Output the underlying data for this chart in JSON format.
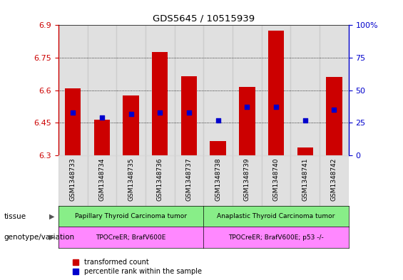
{
  "title": "GDS5645 / 10515939",
  "samples": [
    "GSM1348733",
    "GSM1348734",
    "GSM1348735",
    "GSM1348736",
    "GSM1348737",
    "GSM1348738",
    "GSM1348739",
    "GSM1348740",
    "GSM1348741",
    "GSM1348742"
  ],
  "transformed_count": [
    6.61,
    6.465,
    6.575,
    6.775,
    6.665,
    6.365,
    6.615,
    6.875,
    6.335,
    6.66
  ],
  "percentile_rank": [
    33,
    29,
    32,
    33,
    33,
    27,
    37,
    37,
    27,
    35
  ],
  "ylim_left": [
    6.3,
    6.9
  ],
  "ylim_right": [
    0,
    100
  ],
  "yticks_left": [
    6.3,
    6.45,
    6.6,
    6.75,
    6.9
  ],
  "ytick_labels_left": [
    "6.3",
    "6.45",
    "6.6",
    "6.75",
    "6.9"
  ],
  "yticks_right": [
    0,
    25,
    50,
    75,
    100
  ],
  "ytick_labels_right": [
    "0",
    "25",
    "50",
    "75",
    "100%"
  ],
  "gridlines": [
    6.45,
    6.6,
    6.75
  ],
  "tissue_labels": [
    "Papillary Thyroid Carcinoma tumor",
    "Anaplastic Thyroid Carcinoma tumor"
  ],
  "tissue_color": "#88EE88",
  "genotype_labels": [
    "TPOCreER; BrafV600E",
    "TPOCreER; BrafV600E; p53 -/-"
  ],
  "genotype_color": "#FF88FF",
  "bar_color": "#CC0000",
  "dot_color": "#0000CC",
  "bar_width": 0.55,
  "bar_bottom": 6.3,
  "col_bg_color": "#C8C8C8",
  "tick_color_left": "#CC0000",
  "tick_color_right": "#0000CC",
  "legend_label_red": "transformed count",
  "legend_label_blue": "percentile rank within the sample",
  "tissue_row_label": "tissue",
  "genotype_row_label": "genotype/variation",
  "n_groups": 2,
  "group_size": 5
}
